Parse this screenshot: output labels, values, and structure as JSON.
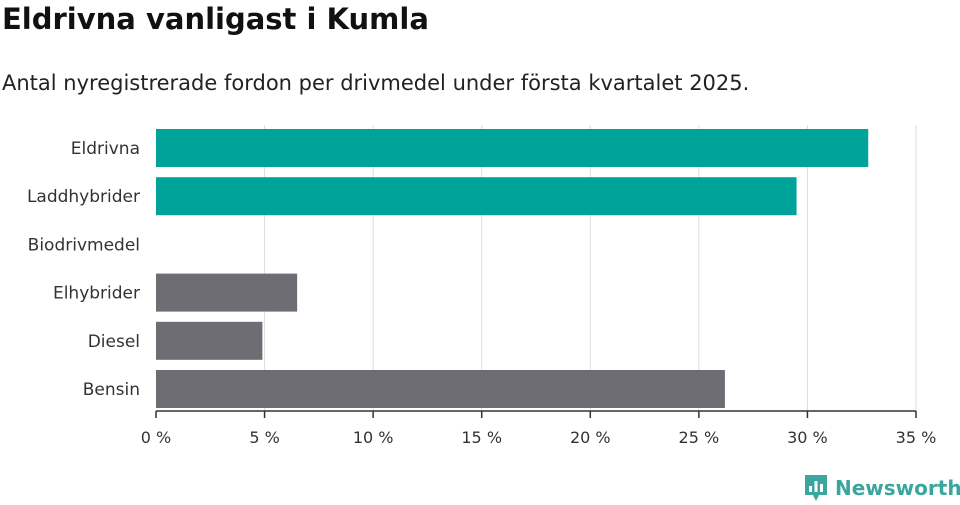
{
  "chart_data": {
    "type": "bar",
    "orientation": "horizontal",
    "title": "Eldrivna vanligast i Kumla",
    "subtitle": "Antal nyregistrerade fordon per drivmedel under första kvartalet 2025.",
    "categories": [
      "Eldrivna",
      "Laddhybrider",
      "Biodrivmedel",
      "Elhybrider",
      "Diesel",
      "Bensin"
    ],
    "values": [
      32.8,
      29.5,
      0,
      6.5,
      4.9,
      26.2
    ],
    "bar_colors": [
      "#00a39a",
      "#00a39a",
      "#6e6d73",
      "#6e6d73",
      "#6e6d73",
      "#6e6d73"
    ],
    "xlim": [
      0,
      35
    ],
    "xticks": [
      0,
      5,
      10,
      15,
      20,
      25,
      30,
      35
    ],
    "xtick_labels": [
      "0 %",
      "5 %",
      "10 %",
      "15 %",
      "20 %",
      "25 %",
      "30 %",
      "35 %"
    ],
    "grid": true,
    "grid_color": "#dddddd",
    "axis_color": "#333333"
  },
  "brand": {
    "name": "Newsworthy",
    "icon": "newsworthy-bar-chart-icon",
    "color": "#3aa69d"
  }
}
